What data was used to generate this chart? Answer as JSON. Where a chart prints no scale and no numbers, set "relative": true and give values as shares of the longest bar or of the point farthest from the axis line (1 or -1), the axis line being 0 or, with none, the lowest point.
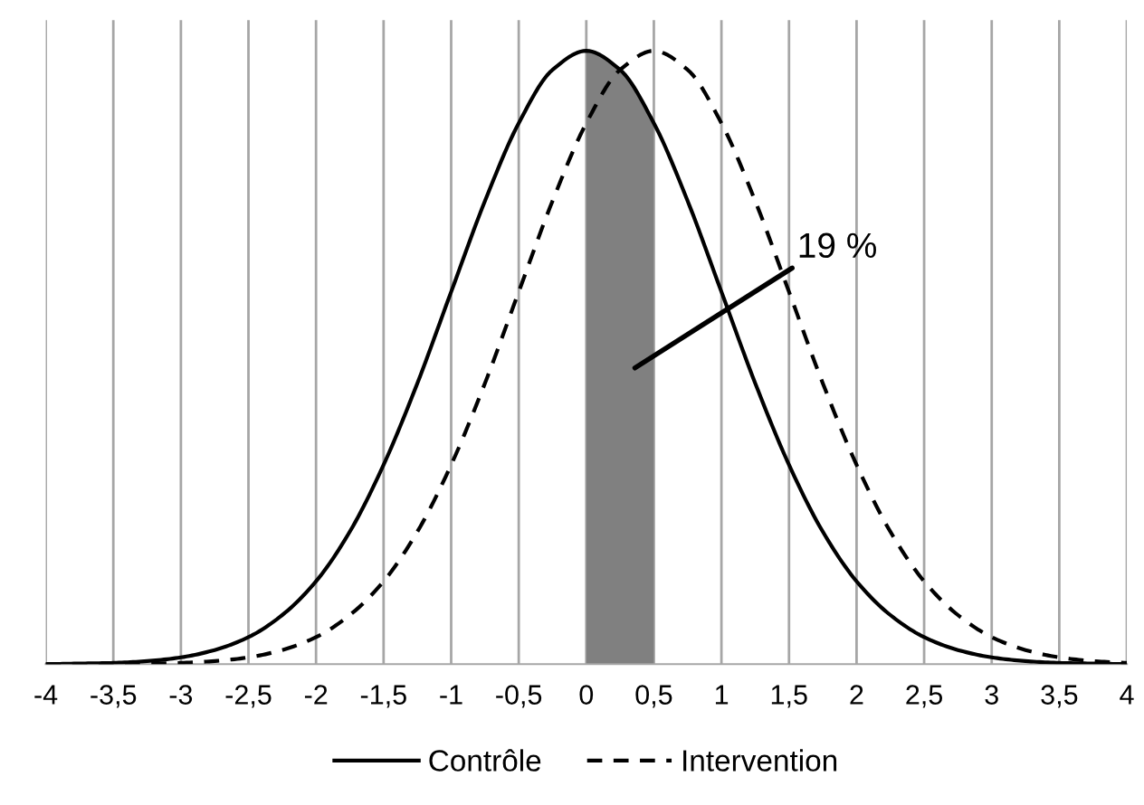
{
  "chart_data": {
    "type": "line",
    "relative": true,
    "x": [
      -4,
      -3.75,
      -3.5,
      -3.25,
      -3,
      -2.75,
      -2.5,
      -2.25,
      -2,
      -1.75,
      -1.5,
      -1.25,
      -1,
      -0.75,
      -0.5,
      -0.25,
      0,
      0.25,
      0.5,
      0.75,
      1,
      1.25,
      1.5,
      1.75,
      2,
      2.25,
      2.5,
      2.75,
      3,
      3.25,
      3.5,
      3.75,
      4
    ],
    "series": [
      {
        "name": "Contrôle",
        "color": "#000000",
        "line_style": "solid",
        "values": [
          0,
          0.001,
          0.002,
          0.005,
          0.011,
          0.023,
          0.044,
          0.08,
          0.135,
          0.216,
          0.325,
          0.458,
          0.607,
          0.755,
          0.882,
          0.969,
          1,
          0.969,
          0.882,
          0.755,
          0.607,
          0.458,
          0.325,
          0.216,
          0.135,
          0.08,
          0.044,
          0.023,
          0.011,
          0.005,
          0.002,
          0.001,
          0
        ]
      },
      {
        "name": "Intervention",
        "color": "#000000",
        "line_style": "dashed",
        "values": [
          0,
          0,
          0,
          0.001,
          0.002,
          0.005,
          0.011,
          0.023,
          0.044,
          0.08,
          0.135,
          0.216,
          0.325,
          0.458,
          0.607,
          0.755,
          0.882,
          0.969,
          1,
          0.969,
          0.882,
          0.755,
          0.607,
          0.458,
          0.325,
          0.216,
          0.135,
          0.08,
          0.044,
          0.023,
          0.011,
          0.005,
          0.002
        ]
      }
    ],
    "xlim": [
      -4,
      4
    ],
    "xticks": [
      -4,
      {
        "value": -3.5,
        "label": "-3,5"
      },
      -3,
      {
        "value": -2.5,
        "label": "-2,5"
      },
      -2,
      {
        "value": -1.5,
        "label": "-1,5"
      },
      -1,
      {
        "value": -0.5,
        "label": "-0,5"
      },
      0,
      {
        "value": 0.5,
        "label": "0,5"
      },
      1,
      {
        "value": 1.5,
        "label": "1,5"
      },
      2,
      {
        "value": 2.5,
        "label": "2,5"
      },
      3,
      {
        "value": 3.5,
        "label": "3,5"
      },
      4
    ],
    "bands": [
      {
        "axis": "x",
        "from": 0,
        "to": 0.5,
        "color": "#808080"
      }
    ],
    "annotations": [
      "19 %"
    ],
    "grid": "x",
    "legend": "bottom",
    "marker": "none"
  }
}
